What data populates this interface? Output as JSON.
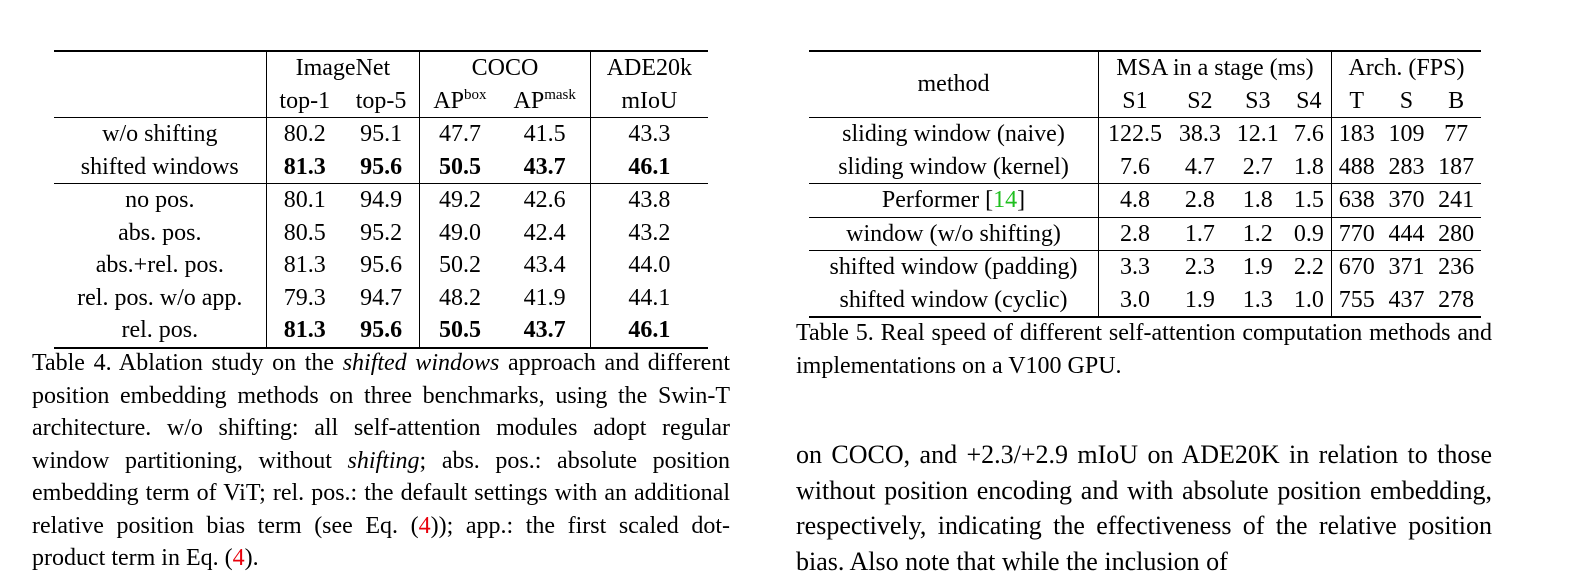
{
  "table4": {
    "groups": {
      "imagenet": "ImageNet",
      "coco": "COCO",
      "ade": "ADE20k"
    },
    "subheaders": {
      "top1": "top-1",
      "top5": "top-5",
      "apbox": "AP",
      "apbox_sup": "box",
      "apmask": "AP",
      "apmask_sup": "mask",
      "miou": "mIoU"
    },
    "rows": [
      {
        "label": "w/o shifting",
        "top1": "80.2",
        "top5": "95.1",
        "apbox": "47.7",
        "apmask": "41.5",
        "miou": "43.3"
      },
      {
        "label": "shifted windows",
        "top1": "81.3",
        "top5": "95.6",
        "apbox": "50.5",
        "apmask": "43.7",
        "miou": "46.1"
      },
      {
        "label": "no pos.",
        "top1": "80.1",
        "top5": "94.9",
        "apbox": "49.2",
        "apmask": "42.6",
        "miou": "43.8"
      },
      {
        "label": "abs. pos.",
        "top1": "80.5",
        "top5": "95.2",
        "apbox": "49.0",
        "apmask": "42.4",
        "miou": "43.2"
      },
      {
        "label": "abs.+rel. pos.",
        "top1": "81.3",
        "top5": "95.6",
        "apbox": "50.2",
        "apmask": "43.4",
        "miou": "44.0"
      },
      {
        "label": "rel. pos. w/o app.",
        "top1": "79.3",
        "top5": "94.7",
        "apbox": "48.2",
        "apmask": "41.9",
        "miou": "44.1"
      },
      {
        "label": "rel. pos.",
        "top1": "81.3",
        "top5": "95.6",
        "apbox": "50.5",
        "apmask": "43.7",
        "miou": "46.1"
      }
    ]
  },
  "caption4": {
    "t1": "Table 4. Ablation study on the ",
    "i1": "shifted windows",
    "t2": " approach and different position embedding methods on three benchmarks, using the Swin-T architecture.  w/o shifting: all self-attention modules adopt regular window partitioning, without ",
    "i2": "shifting",
    "t3": "; abs. pos.: absolute position embedding term of ViT; rel. pos.: the default settings with an additional relative position bias term (see Eq. (",
    "ref1": "4",
    "t4": ")); app.: the first scaled dot-product term in Eq. (",
    "ref2": "4",
    "t5": ")."
  },
  "table5": {
    "method_header": "method",
    "msa_header": "MSA in a stage (ms)",
    "arch_header": "Arch. (FPS)",
    "stage_cols": [
      "S1",
      "S2",
      "S3",
      "S4"
    ],
    "arch_cols": [
      "T",
      "S",
      "B"
    ],
    "rows": [
      {
        "method": "sliding window (naive)",
        "cite": "",
        "s1": "122.5",
        "s2": "38.3",
        "s3": "12.1",
        "s4": "7.6",
        "t": "183",
        "s": "109",
        "b": "77"
      },
      {
        "method": "sliding window (kernel)",
        "cite": "",
        "s1": "7.6",
        "s2": "4.7",
        "s3": "2.7",
        "s4": "1.8",
        "t": "488",
        "s": "283",
        "b": "187"
      },
      {
        "method": "Performer [",
        "cite": "14",
        "method_end": "]",
        "s1": "4.8",
        "s2": "2.8",
        "s3": "1.8",
        "s4": "1.5",
        "t": "638",
        "s": "370",
        "b": "241"
      },
      {
        "method": "window (w/o shifting)",
        "cite": "",
        "s1": "2.8",
        "s2": "1.7",
        "s3": "1.2",
        "s4": "0.9",
        "t": "770",
        "s": "444",
        "b": "280"
      },
      {
        "method": "shifted window (padding)",
        "cite": "",
        "s1": "3.3",
        "s2": "2.3",
        "s3": "1.9",
        "s4": "2.2",
        "t": "670",
        "s": "371",
        "b": "236"
      },
      {
        "method": "shifted window (cyclic)",
        "cite": "",
        "s1": "3.0",
        "s2": "1.9",
        "s3": "1.3",
        "s4": "1.0",
        "t": "755",
        "s": "437",
        "b": "278"
      }
    ]
  },
  "caption5": "Table 5. Real speed of different self-attention computation methods and implementations on a V100 GPU.",
  "body_text": "on COCO, and +2.3/+2.9 mIoU on ADE20K in relation to those without position encoding and with absolute position embedding, respectively, indicating the effectiveness of the relative position bias. Also note that while the inclusion of",
  "colors": {
    "equation_ref": "#e8000b",
    "citation": "#1fbf1f"
  }
}
